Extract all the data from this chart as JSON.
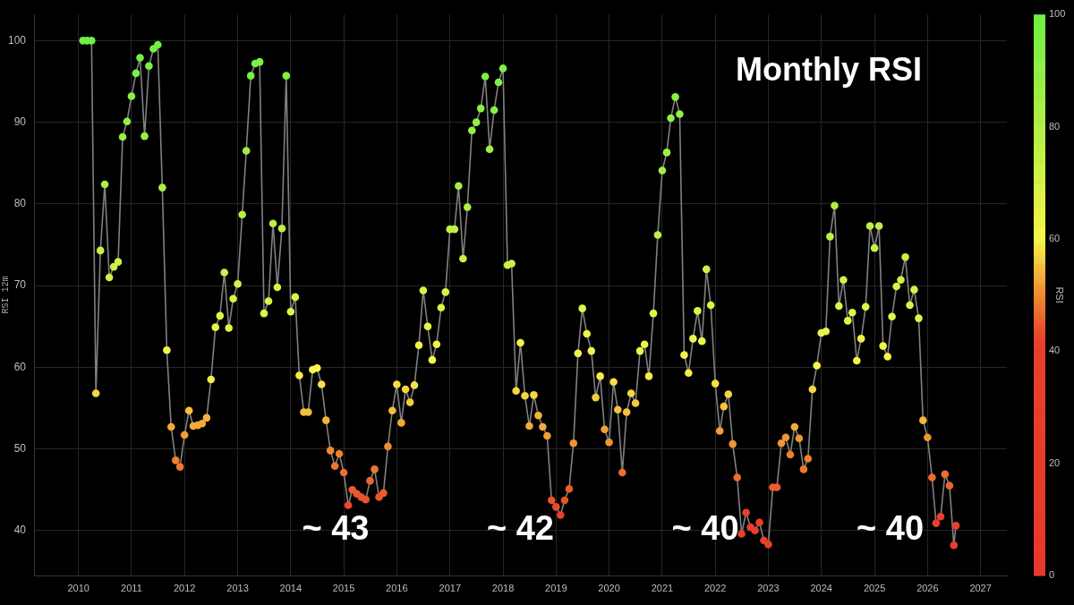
{
  "chart_data": {
    "type": "line",
    "title": "Monthly RSI",
    "ylabel": "RSI 12m",
    "clabel": "RSI",
    "x": [
      "2010-02",
      "2010-03",
      "2010-04",
      "2010-05",
      "2010-06",
      "2010-07",
      "2010-08",
      "2010-09",
      "2010-10",
      "2010-11",
      "2010-12",
      "2011-01",
      "2011-02",
      "2011-03",
      "2011-04",
      "2011-05",
      "2011-06",
      "2011-07",
      "2011-08",
      "2011-09",
      "2011-10",
      "2011-11",
      "2011-12",
      "2012-01",
      "2012-02",
      "2012-03",
      "2012-04",
      "2012-05",
      "2012-06",
      "2012-07",
      "2012-08",
      "2012-09",
      "2012-10",
      "2012-11",
      "2012-12",
      "2013-01",
      "2013-02",
      "2013-03",
      "2013-04",
      "2013-05",
      "2013-06",
      "2013-07",
      "2013-08",
      "2013-09",
      "2013-10",
      "2013-11",
      "2013-12",
      "2014-01",
      "2014-02",
      "2014-03",
      "2014-04",
      "2014-05",
      "2014-06",
      "2014-07",
      "2014-08",
      "2014-09",
      "2014-10",
      "2014-11",
      "2014-12",
      "2015-01",
      "2015-02",
      "2015-03",
      "2015-04",
      "2015-05",
      "2015-06",
      "2015-07",
      "2015-08",
      "2015-09",
      "2015-10",
      "2015-11",
      "2015-12",
      "2016-01",
      "2016-02",
      "2016-03",
      "2016-04",
      "2016-05",
      "2016-06",
      "2016-07",
      "2016-08",
      "2016-09",
      "2016-10",
      "2016-11",
      "2016-12",
      "2017-01",
      "2017-02",
      "2017-03",
      "2017-04",
      "2017-05",
      "2017-06",
      "2017-07",
      "2017-08",
      "2017-09",
      "2017-10",
      "2017-11",
      "2017-12",
      "2018-01",
      "2018-02",
      "2018-03",
      "2018-04",
      "2018-05",
      "2018-06",
      "2018-07",
      "2018-08",
      "2018-09",
      "2018-10",
      "2018-11",
      "2018-12",
      "2019-01",
      "2019-02",
      "2019-03",
      "2019-04",
      "2019-05",
      "2019-06",
      "2019-07",
      "2019-08",
      "2019-09",
      "2019-10",
      "2019-11",
      "2019-12",
      "2020-01",
      "2020-02",
      "2020-03",
      "2020-04",
      "2020-05",
      "2020-06",
      "2020-07",
      "2020-08",
      "2020-09",
      "2020-10",
      "2020-11",
      "2020-12",
      "2021-01",
      "2021-02",
      "2021-03",
      "2021-04",
      "2021-05",
      "2021-06",
      "2021-07",
      "2021-08",
      "2021-09",
      "2021-10",
      "2021-11",
      "2021-12",
      "2022-01",
      "2022-02",
      "2022-03",
      "2022-04",
      "2022-05",
      "2022-06",
      "2022-07",
      "2022-08",
      "2022-09",
      "2022-10",
      "2022-11",
      "2022-12",
      "2023-01",
      "2023-02",
      "2023-03",
      "2023-04",
      "2023-05",
      "2023-06",
      "2023-07",
      "2023-08",
      "2023-09",
      "2023-10",
      "2023-11",
      "2023-12",
      "2024-01",
      "2024-02",
      "2024-03",
      "2024-04",
      "2024-05",
      "2024-06",
      "2024-07",
      "2024-08",
      "2024-09",
      "2024-10",
      "2024-11",
      "2024-12",
      "2025-01",
      "2025-02",
      "2025-03",
      "2025-04",
      "2025-05",
      "2025-06",
      "2025-07",
      "2025-08",
      "2025-09",
      "2025-10",
      "2025-11",
      "2025-12",
      "2026-01",
      "2026-02",
      "2026-03",
      "2026-04",
      "2026-05",
      "2026-06",
      "2026-07",
      "2026-07-15"
    ],
    "series": [
      {
        "color": "#808080",
        "values": [
          100,
          100,
          100,
          56.8,
          74.3,
          82.4,
          71.0,
          72.3,
          72.9,
          88.2,
          90.1,
          93.2,
          96.0,
          97.9,
          88.3,
          96.9,
          99.0,
          99.5,
          82.0,
          62.1,
          52.7,
          48.6,
          47.8,
          51.7,
          54.7,
          52.8,
          52.9,
          53.1,
          53.8,
          58.5,
          64.9,
          66.3,
          71.6,
          64.8,
          68.4,
          70.2,
          78.7,
          86.5,
          95.7,
          97.2,
          97.4,
          66.6,
          68.1,
          77.6,
          69.8,
          77.0,
          95.7,
          66.8,
          68.6,
          59.0,
          54.5,
          54.5,
          59.7,
          59.9,
          57.9,
          53.5,
          49.8,
          47.9,
          49.4,
          47.1,
          43.1,
          45.0,
          44.5,
          44.1,
          43.8,
          46.1,
          47.5,
          44.1,
          44.6,
          50.3,
          54.7,
          57.9,
          53.2,
          57.3,
          55.7,
          57.8,
          62.7,
          69.4,
          65.0,
          60.9,
          62.8,
          67.3,
          69.2,
          76.9,
          76.9,
          82.2,
          73.3,
          79.6,
          89.0,
          90.0,
          91.7,
          95.6,
          86.7,
          91.5,
          94.9,
          96.6,
          72.5,
          72.7,
          57.1,
          63.0,
          56.5,
          52.8,
          56.6,
          54.1,
          52.7,
          51.6,
          43.7,
          42.9,
          41.9,
          43.7,
          45.1,
          50.7,
          61.7,
          67.2,
          64.1,
          62.0,
          56.3,
          58.9,
          52.4,
          50.8,
          58.2,
          54.8,
          47.1,
          54.5,
          56.8,
          55.6,
          62.0,
          62.8,
          58.9,
          66.6,
          76.2,
          84.1,
          86.3,
          90.5,
          93.1,
          91.0,
          61.5,
          59.3,
          63.5,
          66.9,
          63.2,
          72.0,
          67.6,
          58.0,
          52.2,
          55.2,
          56.7,
          50.6,
          46.5,
          39.6,
          42.2,
          40.4,
          40.0,
          41.0,
          38.8,
          38.3,
          45.3,
          45.3,
          50.7,
          51.4,
          49.3,
          52.7,
          51.3,
          47.5,
          48.8,
          57.3,
          60.2,
          64.2,
          64.4,
          76.0,
          79.8,
          67.5,
          70.7,
          65.7,
          66.7,
          60.8,
          63.5,
          67.4,
          77.3,
          74.6,
          77.3,
          62.6,
          61.3,
          66.2,
          69.9,
          70.7,
          73.5,
          67.6,
          69.5,
          66.0,
          53.5,
          51.4,
          46.5,
          40.9,
          41.7,
          46.9,
          45.5,
          38.2,
          40.6
        ],
        "colors": [
          "#6ff043",
          "#6ff043",
          "#6ff043",
          "#f5d642",
          "#c7f146",
          "#abef45",
          "#d2f247",
          "#cef247",
          "#cbf147",
          "#97ef44",
          "#91f044",
          "#8af044",
          "#7cf043",
          "#76f043",
          "#97ef44",
          "#7cf043",
          "#76f043",
          "#6ff043",
          "#abef45",
          "#f1f54a",
          "#f2aa38",
          "#ee812f",
          "#ed782f",
          "#f1a035",
          "#f4c03d",
          "#f2aa38",
          "#f2aa38",
          "#f2aa38",
          "#f3b53a",
          "#f7eb47",
          "#e7f449",
          "#e3f449",
          "#cef247",
          "#e7f449",
          "#dcf348",
          "#d5f348",
          "#b6ef45",
          "#9eef44",
          "#7cf043",
          "#7cf043",
          "#7cf043",
          "#e0f448",
          "#dcf348",
          "#b9f045",
          "#d5f348",
          "#bdf046",
          "#7cf043",
          "#e0f448",
          "#d9f348",
          "#f7eb47",
          "#f4c03d",
          "#f4c03d",
          "#f8f64a",
          "#f8f64a",
          "#f6e045",
          "#f3b53a",
          "#ef8a30",
          "#ed782f",
          "#ee812f",
          "#ec6e2e",
          "#e9492c",
          "#eb5c2d",
          "#eb5c2d",
          "#ea532c",
          "#ea532c",
          "#ec652e",
          "#ed782f",
          "#ea532c",
          "#eb5c2d",
          "#ef8a30",
          "#f4c03d",
          "#f6e045",
          "#f2aa38",
          "#f5d642",
          "#f4cb40",
          "#f6e045",
          "#eef549",
          "#d9f348",
          "#e7f449",
          "#f5f64a",
          "#eef549",
          "#e0f448",
          "#d9f348",
          "#bdf046",
          "#bdf046",
          "#abef45",
          "#cbf147",
          "#b2ef45",
          "#97ef44",
          "#91f044",
          "#8af044",
          "#7cf043",
          "#9eef44",
          "#8af044",
          "#83f044",
          "#7cf043",
          "#cbf147",
          "#cbf147",
          "#f5d642",
          "#eef549",
          "#f5d642",
          "#f2aa38",
          "#f5d642",
          "#f3b53a",
          "#f2aa38",
          "#f1a035",
          "#ea532c",
          "#e9492c",
          "#e8402b",
          "#ea532c",
          "#eb5c2d",
          "#f09533",
          "#f1f54a",
          "#e0f448",
          "#eaf549",
          "#f1f54a",
          "#f4cb40",
          "#f7eb47",
          "#f1a035",
          "#f09533",
          "#f6e045",
          "#f4c03d",
          "#ec6e2e",
          "#f4c03d",
          "#f5d642",
          "#f4cb40",
          "#f1f54a",
          "#eef549",
          "#f7eb47",
          "#e0f448",
          "#c0f046",
          "#a5ef44",
          "#9eef44",
          "#91f044",
          "#8af044",
          "#91f044",
          "#f1f54a",
          "#f7eb47",
          "#eaf549",
          "#e0f448",
          "#eef549",
          "#cef247",
          "#dcf348",
          "#f6e045",
          "#f1a035",
          "#f4c03d",
          "#f5d642",
          "#f09533",
          "#ec6e2e",
          "#e8402b",
          "#e8402b",
          "#e8402b",
          "#e8402b",
          "#e8402b",
          "#e8402b",
          "#e8402b",
          "#eb5c2d",
          "#eb5c2d",
          "#f09533",
          "#f09533",
          "#ee812f",
          "#f2aa38",
          "#f09533",
          "#ed782f",
          "#ee812f",
          "#f5d642",
          "#f8f64a",
          "#eaf549",
          "#eaf549",
          "#c0f046",
          "#b2ef45",
          "#dcf348",
          "#d2f247",
          "#e3f449",
          "#e0f448",
          "#f5f64a",
          "#eaf549",
          "#e0f448",
          "#bdf046",
          "#c4f146",
          "#bdf046",
          "#eef549",
          "#f5f64a",
          "#e3f449",
          "#d5f348",
          "#d2f247",
          "#c7f146",
          "#dcf348",
          "#d5f348",
          "#e3f449",
          "#f3b53a",
          "#f09533",
          "#ec6e2e",
          "#e8402b",
          "#e8402b",
          "#ec6e2e",
          "#ec652e",
          "#e8402b",
          "#e8402b"
        ]
      }
    ],
    "xlim": [
      "2009-03",
      "2027-07"
    ],
    "xticks": [
      "2010",
      "2011",
      "2012",
      "2013",
      "2014",
      "2015",
      "2016",
      "2017",
      "2018",
      "2019",
      "2020",
      "2021",
      "2022",
      "2023",
      "2024",
      "2025",
      "2026",
      "2027"
    ],
    "ylim": [
      34.5,
      103.2
    ],
    "yticks": [
      40,
      50,
      60,
      70,
      80,
      90,
      100
    ],
    "clim": [
      0,
      100
    ],
    "cticks": [
      0,
      20,
      40,
      60,
      80,
      100
    ],
    "grid": true,
    "marker": "circle",
    "annotations": [
      "~ 43",
      "~ 42",
      "~ 40",
      "~ 40"
    ]
  }
}
